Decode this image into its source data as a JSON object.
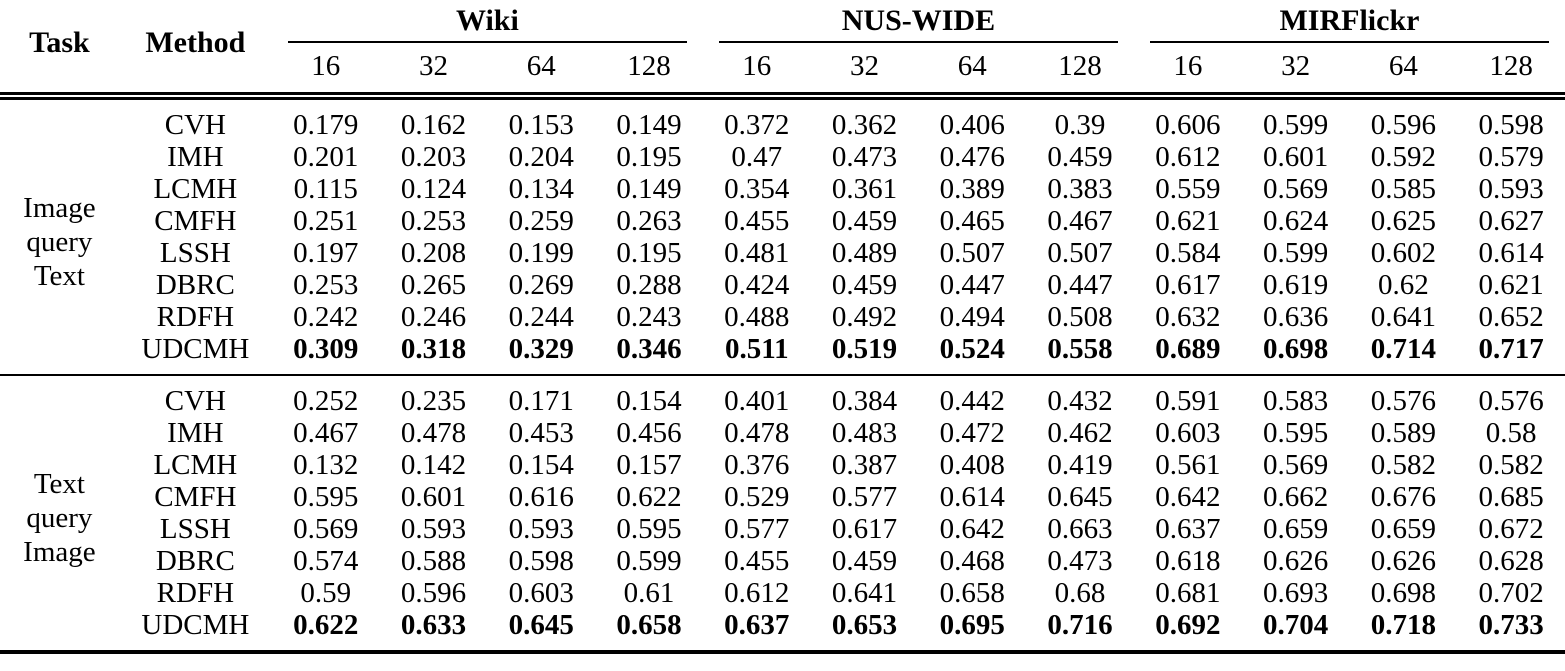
{
  "table": {
    "header": {
      "task": "Task",
      "method": "Method",
      "datasets": [
        {
          "name": "Wiki",
          "bits": [
            "16",
            "32",
            "64",
            "128"
          ]
        },
        {
          "name": "NUS-WIDE",
          "bits": [
            "16",
            "32",
            "64",
            "128"
          ]
        },
        {
          "name": "MIRFlickr",
          "bits": [
            "16",
            "32",
            "64",
            "128"
          ]
        }
      ]
    },
    "blocks": [
      {
        "task_lines": [
          "Image",
          "query",
          "Text"
        ],
        "rows": [
          {
            "method": "CVH",
            "bold": false,
            "values": [
              "0.179",
              "0.162",
              "0.153",
              "0.149",
              "0.372",
              "0.362",
              "0.406",
              "0.39",
              "0.606",
              "0.599",
              "0.596",
              "0.598"
            ]
          },
          {
            "method": "IMH",
            "bold": false,
            "values": [
              "0.201",
              "0.203",
              "0.204",
              "0.195",
              "0.47",
              "0.473",
              "0.476",
              "0.459",
              "0.612",
              "0.601",
              "0.592",
              "0.579"
            ]
          },
          {
            "method": "LCMH",
            "bold": false,
            "values": [
              "0.115",
              "0.124",
              "0.134",
              "0.149",
              "0.354",
              "0.361",
              "0.389",
              "0.383",
              "0.559",
              "0.569",
              "0.585",
              "0.593"
            ]
          },
          {
            "method": "CMFH",
            "bold": false,
            "values": [
              "0.251",
              "0.253",
              "0.259",
              "0.263",
              "0.455",
              "0.459",
              "0.465",
              "0.467",
              "0.621",
              "0.624",
              "0.625",
              "0.627"
            ]
          },
          {
            "method": "LSSH",
            "bold": false,
            "values": [
              "0.197",
              "0.208",
              "0.199",
              "0.195",
              "0.481",
              "0.489",
              "0.507",
              "0.507",
              "0.584",
              "0.599",
              "0.602",
              "0.614"
            ]
          },
          {
            "method": "DBRC",
            "bold": false,
            "values": [
              "0.253",
              "0.265",
              "0.269",
              "0.288",
              "0.424",
              "0.459",
              "0.447",
              "0.447",
              "0.617",
              "0.619",
              "0.62",
              "0.621"
            ]
          },
          {
            "method": "RDFH",
            "bold": false,
            "values": [
              "0.242",
              "0.246",
              "0.244",
              "0.243",
              "0.488",
              "0.492",
              "0.494",
              "0.508",
              "0.632",
              "0.636",
              "0.641",
              "0.652"
            ]
          },
          {
            "method": "UDCMH",
            "bold": true,
            "values": [
              "0.309",
              "0.318",
              "0.329",
              "0.346",
              "0.511",
              "0.519",
              "0.524",
              "0.558",
              "0.689",
              "0.698",
              "0.714",
              "0.717"
            ]
          }
        ]
      },
      {
        "task_lines": [
          "Text",
          "query",
          "Image"
        ],
        "rows": [
          {
            "method": "CVH",
            "bold": false,
            "values": [
              "0.252",
              "0.235",
              "0.171",
              "0.154",
              "0.401",
              "0.384",
              "0.442",
              "0.432",
              "0.591",
              "0.583",
              "0.576",
              "0.576"
            ]
          },
          {
            "method": "IMH",
            "bold": false,
            "values": [
              "0.467",
              "0.478",
              "0.453",
              "0.456",
              "0.478",
              "0.483",
              "0.472",
              "0.462",
              "0.603",
              "0.595",
              "0.589",
              "0.58"
            ]
          },
          {
            "method": "LCMH",
            "bold": false,
            "values": [
              "0.132",
              "0.142",
              "0.154",
              "0.157",
              "0.376",
              "0.387",
              "0.408",
              "0.419",
              "0.561",
              "0.569",
              "0.582",
              "0.582"
            ]
          },
          {
            "method": "CMFH",
            "bold": false,
            "values": [
              "0.595",
              "0.601",
              "0.616",
              "0.622",
              "0.529",
              "0.577",
              "0.614",
              "0.645",
              "0.642",
              "0.662",
              "0.676",
              "0.685"
            ]
          },
          {
            "method": "LSSH",
            "bold": false,
            "values": [
              "0.569",
              "0.593",
              "0.593",
              "0.595",
              "0.577",
              "0.617",
              "0.642",
              "0.663",
              "0.637",
              "0.659",
              "0.659",
              "0.672"
            ]
          },
          {
            "method": "DBRC",
            "bold": false,
            "values": [
              "0.574",
              "0.588",
              "0.598",
              "0.599",
              "0.455",
              "0.459",
              "0.468",
              "0.473",
              "0.618",
              "0.626",
              "0.626",
              "0.628"
            ]
          },
          {
            "method": "RDFH",
            "bold": false,
            "values": [
              "0.59",
              "0.596",
              "0.603",
              "0.61",
              "0.612",
              "0.641",
              "0.658",
              "0.68",
              "0.681",
              "0.693",
              "0.698",
              "0.702"
            ]
          },
          {
            "method": "UDCMH",
            "bold": true,
            "values": [
              "0.622",
              "0.633",
              "0.645",
              "0.658",
              "0.637",
              "0.653",
              "0.695",
              "0.716",
              "0.692",
              "0.704",
              "0.718",
              "0.733"
            ]
          }
        ]
      }
    ]
  }
}
